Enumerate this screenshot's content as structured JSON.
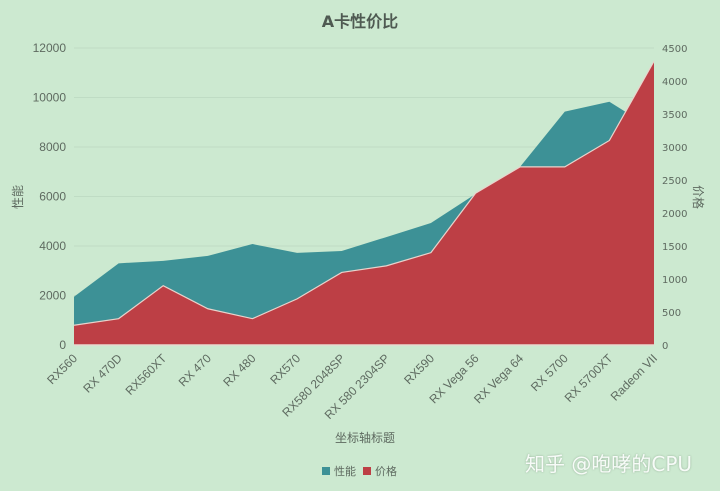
{
  "chart_data": {
    "type": "area",
    "title": "A卡性价比",
    "xlabel": "坐标轴标题",
    "ylabel": "性能",
    "ylabel_right": "价格",
    "categories": [
      "RX560",
      "RX 470D",
      "RX560XT",
      "RX 470",
      "RX 480",
      "RX570",
      "RX580 2048SP",
      "RX 580 2304SP",
      "RX590",
      "RX Vega 56",
      "RX Vega 64",
      "RX 5700",
      "RX 5700XT",
      "Radeon VII"
    ],
    "series": [
      {
        "name": "性能",
        "axis": "left",
        "color": "#3d9196",
        "values": [
          1950,
          3300,
          3400,
          3600,
          4080,
          3720,
          3800,
          4360,
          4930,
          6100,
          7200,
          9430,
          9830,
          8700
        ]
      },
      {
        "name": "价格",
        "axis": "right",
        "color": "#bd3f45",
        "values": [
          299,
          399,
          899,
          549,
          399,
          699,
          1099,
          1199,
          1399,
          2299,
          2699,
          2699,
          3099,
          4299
        ]
      }
    ],
    "ylim": [
      0,
      12000
    ],
    "ylim_right": [
      0,
      4500
    ],
    "yticks": [
      0,
      2000,
      4000,
      6000,
      8000,
      10000,
      12000
    ],
    "yticks_right": [
      0,
      500,
      1000,
      1500,
      2000,
      2500,
      3000,
      3500,
      4000,
      4500
    ],
    "grid": true,
    "legend_position": "bottom"
  },
  "legend": {
    "items": [
      {
        "label": "性能",
        "color": "#3d9196"
      },
      {
        "label": "价格",
        "color": "#bd3f45"
      }
    ]
  },
  "watermark": "知乎 @咆哮的CPU"
}
